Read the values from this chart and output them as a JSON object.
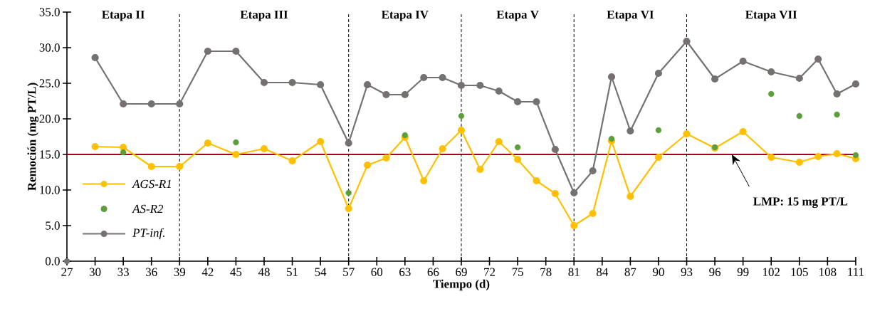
{
  "chart_data": {
    "type": "line",
    "xlabel": "Tiempo (d)",
    "ylabel": "Remoción  (mg PT/L)",
    "xlim": [
      27,
      111
    ],
    "ylim": [
      0,
      35
    ],
    "xticks": [
      27,
      30,
      33,
      36,
      39,
      42,
      45,
      48,
      51,
      54,
      57,
      60,
      63,
      66,
      69,
      72,
      75,
      78,
      81,
      84,
      87,
      90,
      93,
      96,
      99,
      102,
      105,
      108,
      111
    ],
    "yticks": [
      {
        "value": 0,
        "label": "0.0"
      },
      {
        "value": 5,
        "label": "5.0"
      },
      {
        "value": 10,
        "label": "10.0"
      },
      {
        "value": 15,
        "label": "15.0"
      },
      {
        "value": 20,
        "label": "20.0"
      },
      {
        "value": 25,
        "label": "25.0"
      },
      {
        "value": 30,
        "label": "30.0"
      },
      {
        "value": 35,
        "label": "35.0"
      }
    ],
    "marker": "circle",
    "line_style": "solid",
    "legend": "bottom left",
    "grid": false,
    "series": [
      {
        "name": "AGS-R1",
        "type": "line",
        "color": "#ffc000",
        "x": [
          30,
          33,
          36,
          39,
          42,
          45,
          48,
          51,
          54,
          57,
          59,
          61,
          63,
          65,
          67,
          69,
          71,
          73,
          75,
          77,
          79,
          81,
          83,
          85,
          87,
          90,
          93,
          96,
          99,
          102,
          105,
          107,
          109,
          111
        ],
        "values": [
          16.1,
          16.0,
          13.3,
          13.3,
          16.6,
          15.0,
          15.8,
          14.1,
          16.8,
          7.4,
          13.5,
          14.5,
          17.4,
          11.3,
          15.8,
          18.4,
          12.9,
          16.8,
          14.3,
          11.3,
          9.5,
          5.0,
          6.7,
          16.9,
          9.1,
          14.6,
          17.9,
          15.9,
          18.2,
          14.6,
          13.9,
          14.7,
          15.1,
          14.4
        ]
      },
      {
        "name": "AS-R2",
        "type": "scatter",
        "color": "#5b9e3b",
        "x": [
          33,
          45,
          57,
          63,
          69,
          75,
          85,
          90,
          96,
          102,
          105,
          109,
          111
        ],
        "values": [
          15.3,
          16.7,
          9.6,
          17.7,
          20.4,
          16.0,
          17.2,
          18.4,
          16.0,
          23.5,
          20.4,
          20.6,
          14.9
        ]
      },
      {
        "name": "PT-inf.",
        "type": "line",
        "color": "#767171",
        "x": [
          30,
          33,
          36,
          39,
          42,
          45,
          48,
          51,
          54,
          57,
          59,
          61,
          63,
          65,
          67,
          69,
          71,
          73,
          75,
          77,
          79,
          81,
          83,
          85,
          87,
          90,
          93,
          96,
          99,
          102,
          105,
          107,
          109,
          111
        ],
        "values": [
          28.6,
          22.1,
          22.1,
          22.1,
          29.5,
          29.5,
          25.1,
          25.1,
          24.8,
          16.6,
          24.8,
          23.4,
          23.4,
          25.8,
          25.8,
          24.7,
          24.7,
          23.9,
          22.4,
          22.4,
          15.7,
          9.6,
          12.7,
          25.9,
          18.3,
          26.4,
          30.9,
          25.6,
          28.1,
          26.6,
          25.7,
          28.4,
          23.5,
          24.9
        ]
      },
      {
        "type": "scatter",
        "color": "#767171",
        "x": [
          27
        ],
        "values": [
          0
        ]
      }
    ],
    "ref_lines": [
      {
        "axis": "y",
        "value": 15,
        "label": "LMP: 15 mg PT/L",
        "color": "#a50021",
        "line_style": "solid"
      },
      {
        "axis": "x",
        "value": 39,
        "color": "#000000",
        "line_style": "dashed"
      },
      {
        "axis": "x",
        "value": 57,
        "color": "#000000",
        "line_style": "dashed"
      },
      {
        "axis": "x",
        "value": 69,
        "color": "#000000",
        "line_style": "dashed"
      },
      {
        "axis": "x",
        "value": 81,
        "color": "#000000",
        "line_style": "dashed"
      },
      {
        "axis": "x",
        "value": 93,
        "color": "#000000",
        "line_style": "dashed"
      }
    ],
    "annotations": [
      "Etapa II",
      "Etapa III",
      "Etapa IV",
      "Etapa V",
      "Etapa VI",
      "Etapa VII"
    ]
  }
}
